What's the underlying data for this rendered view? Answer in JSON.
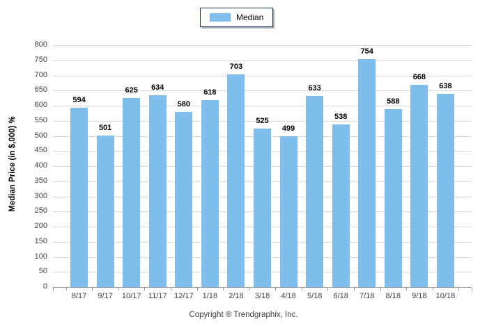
{
  "footer": {
    "copyright": "Copyright ® Trendgraphix, Inc."
  },
  "colors": {
    "bar": "#7EBDEC",
    "gridline": "#D9D9D9",
    "axis": "#9C9C9C",
    "legend_border": "#17375D",
    "tick_text": "#3F3F3F"
  },
  "chart_data": {
    "type": "bar",
    "title": "",
    "categories": [
      "8/17",
      "9/17",
      "10/17",
      "11/17",
      "12/17",
      "1/18",
      "2/18",
      "3/18",
      "4/18",
      "5/18",
      "6/18",
      "7/18",
      "8/18",
      "9/18",
      "10/18"
    ],
    "series": [
      {
        "name": "Median",
        "values": [
          594,
          501,
          625,
          634,
          580,
          618,
          703,
          525,
          499,
          633,
          538,
          754,
          588,
          668,
          638
        ]
      }
    ],
    "xlabel": "",
    "ylabel": "Median Price (in $,000) %",
    "ylim": [
      0,
      800
    ],
    "ytick_step": 50,
    "grid": "horizontal",
    "legend_position": "top-center",
    "value_labels": true
  }
}
